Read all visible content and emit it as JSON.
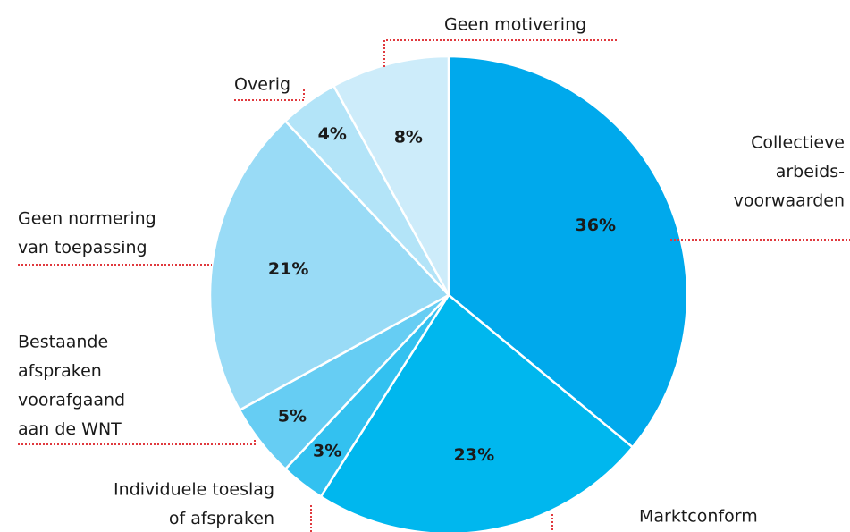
{
  "chart_data": {
    "type": "pie",
    "categories": [
      [
        "Collectieve",
        "arbeids-",
        "voorwaarden"
      ],
      [
        "Marktconform"
      ],
      [
        "Individuele toeslag",
        "of afspraken"
      ],
      [
        "Bestaande",
        "afspraken",
        "voorafgaand",
        "aan de WNT"
      ],
      [
        "Geen normering",
        "van toepassing"
      ],
      [
        "Overig"
      ],
      [
        "Geen motivering"
      ]
    ],
    "values": [
      36,
      23,
      3,
      5,
      21,
      4,
      8
    ],
    "value_labels": [
      "36%",
      "23%",
      "3%",
      "5%",
      "21%",
      "4%",
      "8%"
    ],
    "colors": [
      "#00a9ec",
      "#00b7ee",
      "#33c1f0",
      "#66cdf3",
      "#99dbf6",
      "#b3e4f8",
      "#cdecfa"
    ],
    "leader_color": "#e0393e"
  }
}
